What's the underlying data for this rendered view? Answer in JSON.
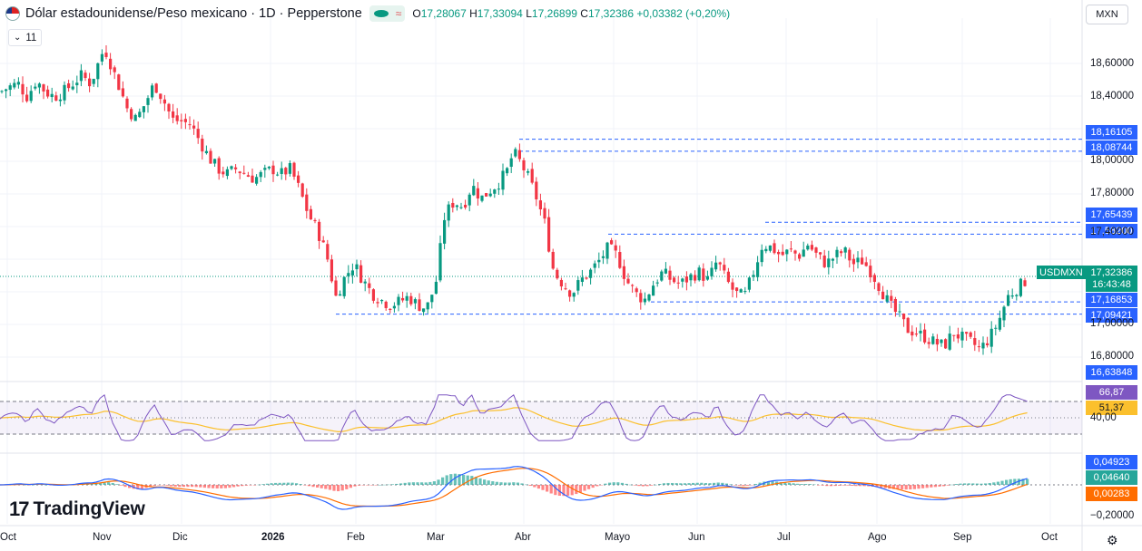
{
  "header": {
    "title": "Dólar estadounidense/Peso mexicano · 1D · Pepperstone",
    "open_label": "O",
    "open": "17,28067",
    "high_label": "H",
    "high": "17,33094",
    "low_label": "L",
    "low": "17,26899",
    "close_label": "C",
    "close": "17,32386",
    "change": "+0,03382 (+0,20%)",
    "pill_icon": "approx-icon",
    "pill_text": "≈"
  },
  "indicator_toggle": {
    "icon": "chevron-down-icon",
    "count": "11"
  },
  "currency_button": "MXN",
  "symbol_tag": "USDMXN",
  "price_tags": [
    {
      "value": "18,16105",
      "color": "#2962ff"
    },
    {
      "value": "18,08744",
      "color": "#2962ff"
    },
    {
      "value": "17,65439",
      "color": "#2962ff"
    },
    {
      "value": "17,58200",
      "color": "#2962ff"
    },
    {
      "value": "17,32386",
      "color": "#089981"
    },
    {
      "value": "16:43:48",
      "color": "#089981"
    },
    {
      "value": "17,16853",
      "color": "#2962ff"
    },
    {
      "value": "17,09421",
      "color": "#2962ff"
    },
    {
      "value": "16,63848",
      "color": "#2962ff"
    },
    {
      "value": "66,87",
      "color": "#7e57c2"
    },
    {
      "value": "51,37",
      "color": "#fbc02d"
    },
    {
      "value": "0,04923",
      "color": "#2962ff"
    },
    {
      "value": "0,04640",
      "color": "#26a69a"
    },
    {
      "value": "0,00283",
      "color": "#ff6d00"
    }
  ],
  "y_axis_labels": [
    "18,60000",
    "18,40000",
    "18,00000",
    "17,80000",
    "17,40000",
    "17,00000",
    "16,80000",
    "40,00",
    "−0,20000"
  ],
  "x_axis_labels": [
    "Oct",
    "Nov",
    "Dic",
    "2026",
    "Feb",
    "Mar",
    "Abr",
    "Mayo",
    "Jun",
    "Jul",
    "Ago",
    "Sep",
    "Oct"
  ],
  "logo_text": "TradingView",
  "settings_icon": "gear-icon",
  "chart_data": [
    {
      "type": "candlestick",
      "title": "Dólar estadounidense/Peso mexicano · 1D · Pepperstone",
      "series": [
        {
          "name": "USDMXN",
          "close_path": [
            [
              0,
              18.45
            ],
            [
              10,
              18.48
            ],
            [
              20,
              18.5
            ],
            [
              30,
              18.42
            ],
            [
              40,
              18.52
            ],
            [
              50,
              18.45
            ],
            [
              60,
              18.42
            ],
            [
              70,
              18.45
            ],
            [
              80,
              18.5
            ],
            [
              90,
              18.55
            ],
            [
              100,
              18.5
            ],
            [
              110,
              18.65
            ],
            [
              115,
              18.72
            ],
            [
              120,
              18.65
            ],
            [
              130,
              18.5
            ],
            [
              140,
              18.35
            ],
            [
              150,
              18.28
            ],
            [
              160,
              18.38
            ],
            [
              170,
              18.5
            ],
            [
              180,
              18.4
            ],
            [
              190,
              18.28
            ],
            [
              200,
              18.27
            ],
            [
              210,
              18.25
            ],
            [
              220,
              18.15
            ],
            [
              230,
              18.05
            ],
            [
              240,
              17.98
            ],
            [
              250,
              17.95
            ],
            [
              260,
              17.98
            ],
            [
              270,
              17.95
            ],
            [
              280,
              17.92
            ],
            [
              290,
              17.95
            ],
            [
              300,
              17.98
            ],
            [
              310,
              17.95
            ],
            [
              320,
              17.98
            ],
            [
              330,
              17.85
            ],
            [
              340,
              17.7
            ],
            [
              350,
              17.6
            ],
            [
              360,
              17.45
            ],
            [
              370,
              17.2
            ],
            [
              380,
              17.32
            ],
            [
              390,
              17.4
            ],
            [
              400,
              17.3
            ],
            [
              410,
              17.22
            ],
            [
              420,
              17.18
            ],
            [
              430,
              17.15
            ],
            [
              440,
              17.17
            ],
            [
              450,
              17.2
            ],
            [
              460,
              17.15
            ],
            [
              470,
              17.13
            ],
            [
              480,
              17.28
            ],
            [
              490,
              17.7
            ],
            [
              500,
              17.78
            ],
            [
              510,
              17.75
            ],
            [
              520,
              17.88
            ],
            [
              530,
              17.8
            ],
            [
              540,
              17.85
            ],
            [
              550,
              17.9
            ],
            [
              560,
              17.98
            ],
            [
              565,
              18.08
            ],
            [
              570,
              18.05
            ],
            [
              580,
              17.95
            ],
            [
              590,
              17.82
            ],
            [
              600,
              17.65
            ],
            [
              610,
              17.35
            ],
            [
              620,
              17.28
            ],
            [
              630,
              17.22
            ],
            [
              640,
              17.3
            ],
            [
              650,
              17.35
            ],
            [
              660,
              17.42
            ],
            [
              670,
              17.5
            ],
            [
              680,
              17.45
            ],
            [
              690,
              17.3
            ],
            [
              700,
              17.22
            ],
            [
              710,
              17.18
            ],
            [
              720,
              17.28
            ],
            [
              730,
              17.35
            ],
            [
              740,
              17.3
            ],
            [
              750,
              17.28
            ],
            [
              760,
              17.32
            ],
            [
              770,
              17.35
            ],
            [
              780,
              17.3
            ],
            [
              790,
              17.42
            ],
            [
              800,
              17.3
            ],
            [
              810,
              17.22
            ],
            [
              820,
              17.2
            ],
            [
              830,
              17.35
            ],
            [
              840,
              17.52
            ],
            [
              850,
              17.5
            ],
            [
              860,
              17.45
            ],
            [
              870,
              17.48
            ],
            [
              880,
              17.45
            ],
            [
              890,
              17.52
            ],
            [
              900,
              17.45
            ],
            [
              910,
              17.4
            ],
            [
              920,
              17.45
            ],
            [
              930,
              17.48
            ],
            [
              940,
              17.4
            ],
            [
              950,
              17.42
            ],
            [
              960,
              17.35
            ],
            [
              970,
              17.25
            ],
            [
              980,
              17.15
            ],
            [
              990,
              17.08
            ],
            [
              1000,
              17.0
            ],
            [
              1010,
              16.98
            ],
            [
              1020,
              16.95
            ],
            [
              1030,
              16.92
            ],
            [
              1040,
              16.9
            ],
            [
              1050,
              16.98
            ],
            [
              1060,
              16.95
            ],
            [
              1070,
              16.92
            ],
            [
              1080,
              16.88
            ],
            [
              1090,
              16.95
            ],
            [
              1100,
              17.05
            ],
            [
              1110,
              17.2
            ],
            [
              1120,
              17.25
            ],
            [
              1130,
              17.3
            ],
            [
              1135,
              17.32386
            ]
          ]
        }
      ],
      "y_range": [
        16.6,
        18.8
      ],
      "horizontal_levels": [
        18.16105,
        18.08744,
        17.65439,
        17.582,
        17.16853,
        17.09421
      ],
      "last_price": 17.32386
    },
    {
      "type": "line",
      "series": [
        {
          "name": "RSI",
          "last": 66.87
        },
        {
          "name": "RSI MA",
          "last": 51.37
        }
      ],
      "bands": [
        70,
        30
      ]
    },
    {
      "type": "bar",
      "series": [
        {
          "name": "MACD",
          "last": 0.04923
        },
        {
          "name": "Signal",
          "last": 0.0464
        },
        {
          "name": "Histogram",
          "last": 0.00283
        }
      ]
    }
  ]
}
